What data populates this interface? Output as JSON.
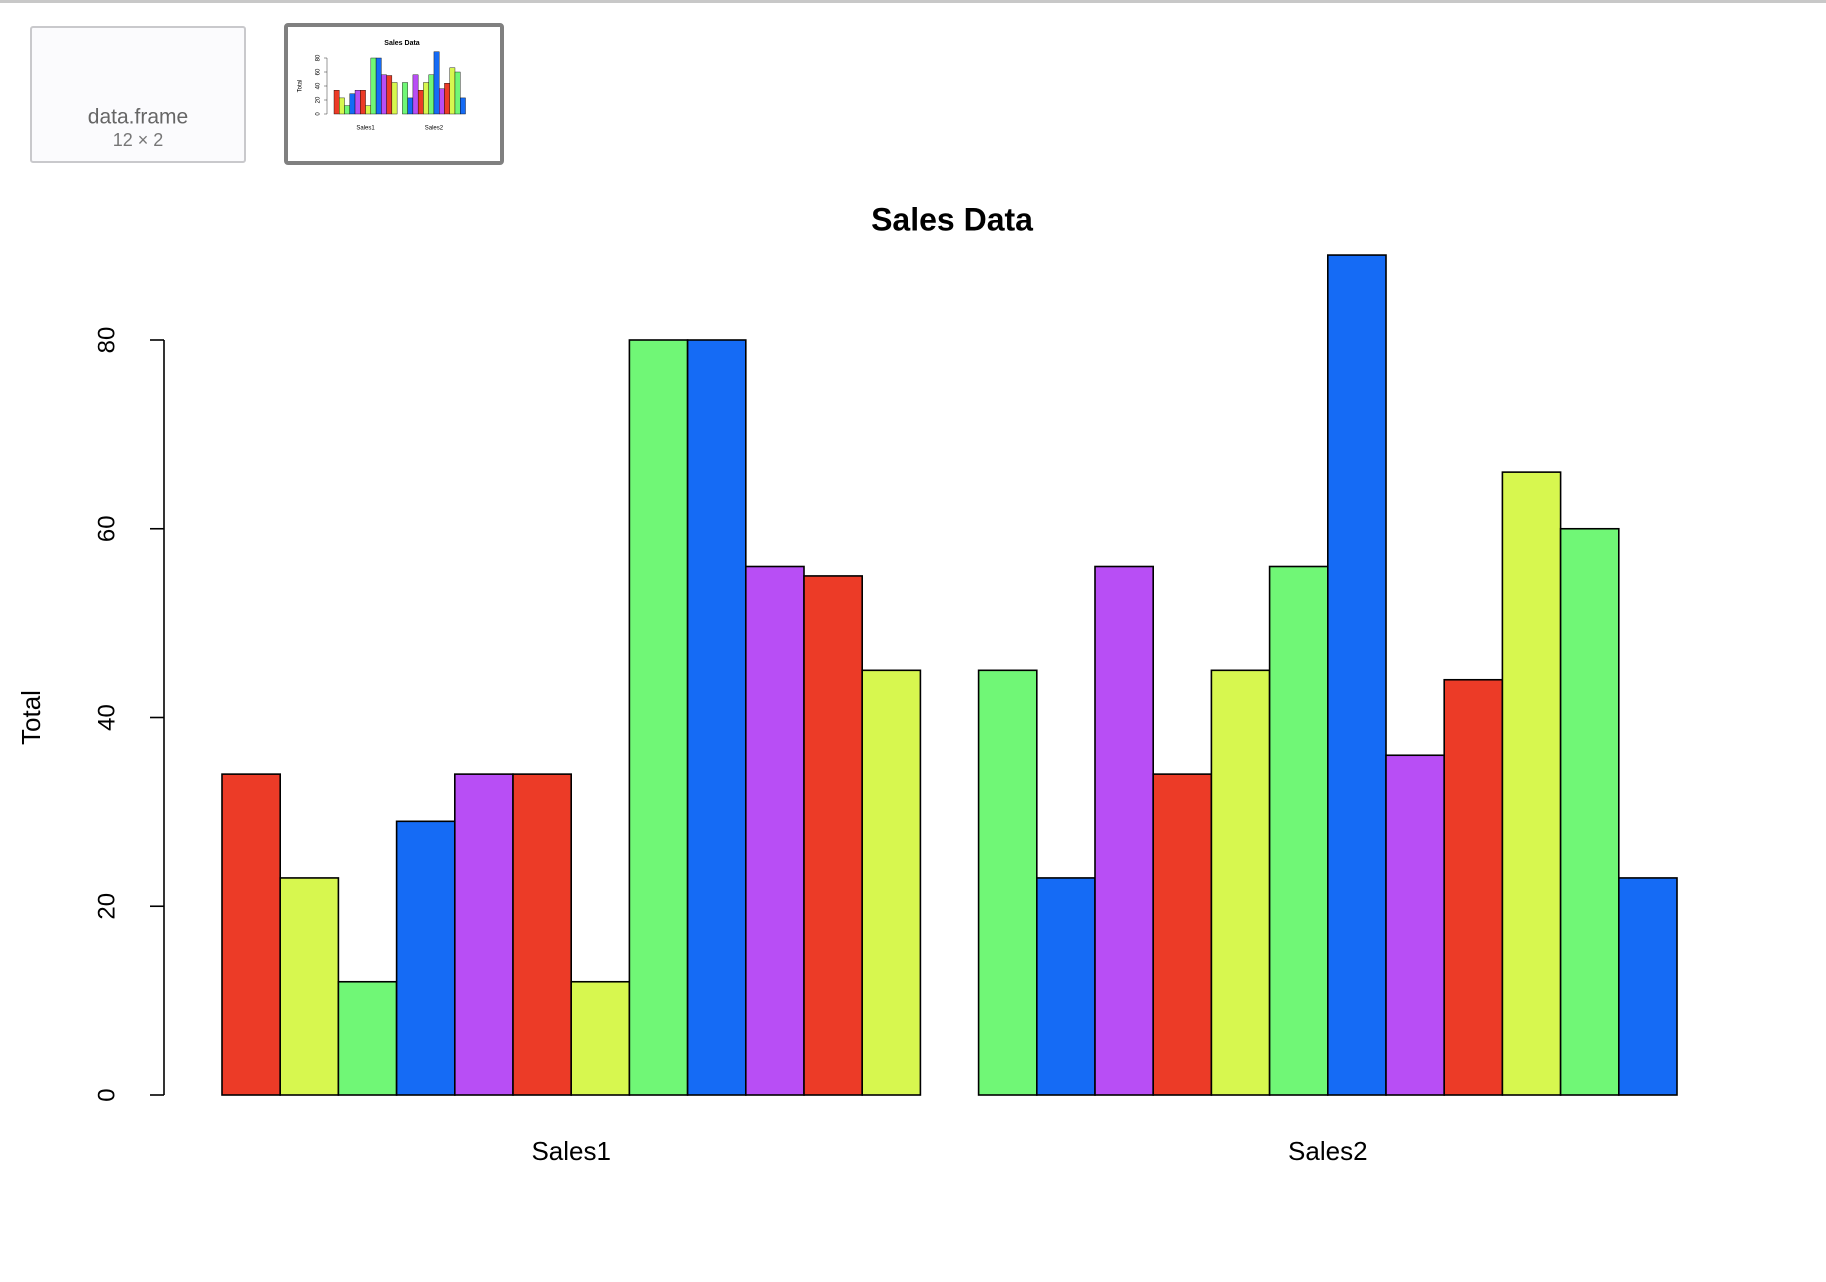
{
  "thumbnails": [
    {
      "label": "data.frame",
      "size": "12 × 2"
    }
  ],
  "chart_data": {
    "type": "bar",
    "title": "Sales Data",
    "ylabel": "Total",
    "categories": [
      "Sales1",
      "Sales2"
    ],
    "values": [
      [
        34,
        23,
        12,
        29,
        34,
        34,
        12,
        80,
        80,
        56,
        55,
        45
      ],
      [
        45,
        23,
        56,
        34,
        45,
        56,
        89,
        36,
        44,
        66,
        60,
        23
      ]
    ],
    "palette": [
      "#ec3b27",
      "#d7f74f",
      "#70f776",
      "#156bf5",
      "#b84ef5"
    ],
    "ylim": [
      0,
      80
    ],
    "yticks": [
      0,
      20,
      40,
      60,
      80
    ]
  }
}
